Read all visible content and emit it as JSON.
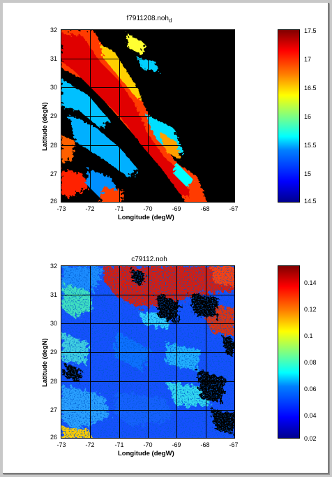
{
  "top_panel": {
    "title_main": "f7911208.noh",
    "title_sub": "d",
    "x_ticks": [
      "-73",
      "-72",
      "-71",
      "-70",
      "-69",
      "-68",
      "-67"
    ],
    "y_ticks": [
      "32",
      "31",
      "30",
      "29",
      "28",
      "27",
      "26"
    ],
    "xlabel": "Longitude (degW)",
    "ylabel": "Latitude (degN)",
    "colorbar_ticks": [
      "17.5",
      "17",
      "16.5",
      "16",
      "15.5",
      "15",
      "14.5"
    ]
  },
  "bottom_panel": {
    "title": "c79112.noh",
    "x_ticks": [
      "-73",
      "-72",
      "-71",
      "-70",
      "-69",
      "-68",
      "-67"
    ],
    "y_ticks": [
      "32",
      "31",
      "30",
      "29",
      "28",
      "27",
      "26"
    ],
    "xlabel": "Longitude (degW)",
    "ylabel": "Latitude (degN)",
    "colorbar_ticks": [
      "0.14",
      "0.12",
      "0.1",
      "0.08",
      "0.06",
      "0.04",
      "0.02"
    ]
  },
  "colors": {
    "background": "#c8c8c8",
    "land_mask": "#000000"
  }
}
